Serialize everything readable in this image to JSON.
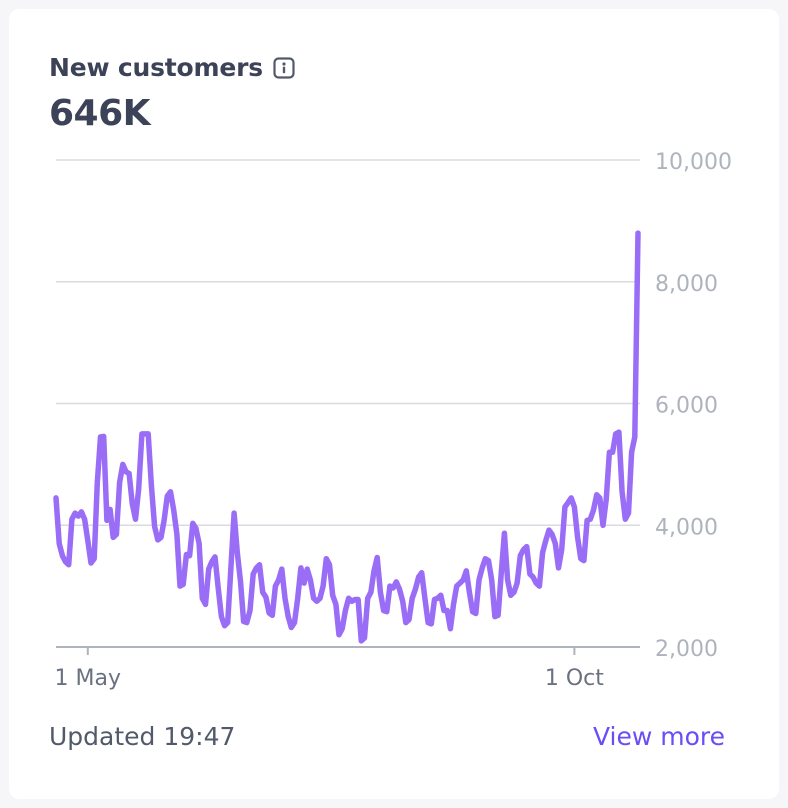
{
  "card": {
    "title": "New customers",
    "value": "646K",
    "updated_label": "Updated 19:47",
    "view_more_label": "View more"
  },
  "colors": {
    "line": "#9a6df7",
    "grid": "#d9dbe1",
    "axis": "#aeb3bd",
    "link": "#6b4cf6"
  },
  "icons": {
    "info": "info-icon"
  },
  "chart_data": {
    "type": "line",
    "title": "New customers",
    "xlabel": "",
    "ylabel": "",
    "ylim": [
      2000,
      10000
    ],
    "yticks": [
      2000,
      4000,
      6000,
      8000,
      10000
    ],
    "ytick_labels": [
      "2,000",
      "4,000",
      "6,000",
      "8,000",
      "10,000"
    ],
    "xticks": [
      {
        "index": 10,
        "label": "1 May"
      },
      {
        "index": 163,
        "label": "1 Oct"
      }
    ],
    "series": [
      {
        "name": "New customers",
        "values": [
          4450,
          3700,
          3500,
          3400,
          3350,
          4100,
          4200,
          4150,
          4220,
          4100,
          3750,
          3380,
          3450,
          4700,
          5450,
          5460,
          4080,
          4260,
          3800,
          3850,
          4700,
          5000,
          4880,
          4850,
          4350,
          4100,
          4600,
          5500,
          5500,
          5500,
          4650,
          3980,
          3760,
          3800,
          4080,
          4480,
          4550,
          4250,
          3850,
          3000,
          3030,
          3520,
          3500,
          4030,
          3950,
          3700,
          2800,
          2700,
          3280,
          3400,
          3480,
          2970,
          2500,
          2350,
          2400,
          3300,
          4200,
          3550,
          3080,
          2420,
          2400,
          2600,
          3200,
          3300,
          3350,
          2900,
          2820,
          2560,
          2520,
          3000,
          3100,
          3280,
          2800,
          2500,
          2320,
          2400,
          2800,
          3300,
          3050,
          3280,
          3100,
          2800,
          2750,
          2800,
          3000,
          3450,
          3350,
          2850,
          2700,
          2200,
          2300,
          2600,
          2800,
          2750,
          2780,
          2780,
          2100,
          2150,
          2800,
          2900,
          3250,
          3470,
          2900,
          2600,
          2580,
          3000,
          2970,
          3070,
          2950,
          2750,
          2400,
          2450,
          2800,
          2950,
          3150,
          3220,
          2800,
          2400,
          2380,
          2780,
          2800,
          2850,
          2600,
          2600,
          2300,
          2700,
          3000,
          3050,
          3100,
          3250,
          2900,
          2580,
          2550,
          3100,
          3300,
          3450,
          3420,
          3100,
          2500,
          2520,
          3200,
          3870,
          3100,
          2850,
          2900,
          3050,
          3500,
          3600,
          3650,
          3200,
          3150,
          3050,
          3000,
          3550,
          3750,
          3920,
          3850,
          3700,
          3300,
          3600,
          4300,
          4370,
          4450,
          4300,
          3800,
          3450,
          3420,
          4080,
          4100,
          4250,
          4500,
          4450,
          4000,
          4420,
          5200,
          5200,
          5500,
          5530,
          4550,
          4100,
          4200,
          5200,
          5450,
          8800
        ]
      }
    ]
  }
}
